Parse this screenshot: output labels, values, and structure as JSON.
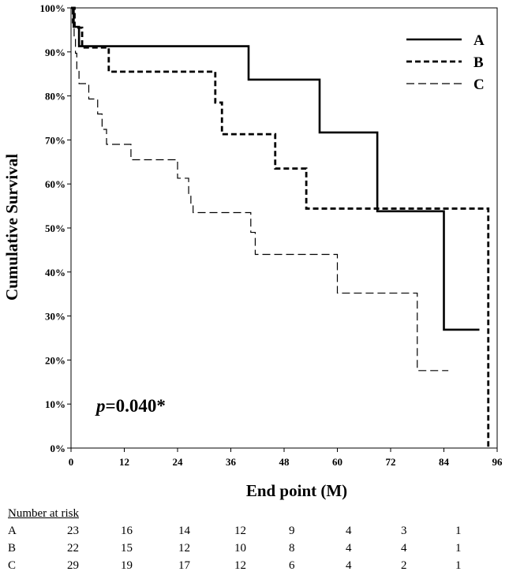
{
  "chart_data": {
    "type": "line",
    "subtype": "kaplan-meier-step",
    "xlabel": "End point (M)",
    "ylabel": "Cumulative Survival",
    "xlim": [
      0,
      96
    ],
    "ylim": [
      0,
      100
    ],
    "xticks": [
      0,
      12,
      24,
      36,
      48,
      60,
      72,
      84,
      96
    ],
    "yticks": [
      0,
      10,
      20,
      30,
      40,
      50,
      60,
      70,
      80,
      90,
      100
    ],
    "ytick_labels": [
      "0%",
      "10%",
      "20%",
      "30%",
      "40%",
      "50%",
      "60%",
      "70%",
      "80%",
      "90%",
      "100%"
    ],
    "grid": false,
    "legend_position": "top-right",
    "annotation": {
      "italic": "p",
      "rest": "=0.040*"
    },
    "series": [
      {
        "name": "A",
        "style": "solid-thick",
        "points": [
          [
            0,
            100
          ],
          [
            0.6,
            95.7
          ],
          [
            1.8,
            91.3
          ],
          [
            40,
            83.7
          ],
          [
            56,
            71.7
          ],
          [
            69,
            53.8
          ],
          [
            84,
            26.9
          ],
          [
            92,
            26.9
          ]
        ]
      },
      {
        "name": "B",
        "style": "dashed-thick",
        "points": [
          [
            0,
            100
          ],
          [
            0.8,
            95.5
          ],
          [
            2.5,
            91
          ],
          [
            8.5,
            85.5
          ],
          [
            32.5,
            78.5
          ],
          [
            34,
            71.3
          ],
          [
            46,
            63.5
          ],
          [
            53,
            54.4
          ],
          [
            94,
            0
          ]
        ]
      },
      {
        "name": "C",
        "style": "dashed-thin",
        "points": [
          [
            0,
            100
          ],
          [
            0.3,
            96.6
          ],
          [
            0.7,
            93.1
          ],
          [
            1,
            89.7
          ],
          [
            1.3,
            86.2
          ],
          [
            1.8,
            82.8
          ],
          [
            4,
            79.3
          ],
          [
            6,
            75.9
          ],
          [
            7,
            72.4
          ],
          [
            8,
            69
          ],
          [
            13.5,
            65.5
          ],
          [
            24,
            61.3
          ],
          [
            26.5,
            57.4
          ],
          [
            27,
            55.5
          ],
          [
            27.5,
            53.5
          ],
          [
            40.5,
            49
          ],
          [
            41.5,
            44
          ],
          [
            60,
            35.2
          ],
          [
            78,
            17.6
          ],
          [
            85,
            17.6
          ]
        ]
      }
    ]
  },
  "risk_table": {
    "title": "Number at risk",
    "rows": [
      {
        "label": "A",
        "values": [
          "23",
          "16",
          "14",
          "12",
          "9",
          "4",
          "3",
          "1"
        ]
      },
      {
        "label": "B",
        "values": [
          "22",
          "15",
          "12",
          "10",
          "8",
          "4",
          "4",
          "1"
        ]
      },
      {
        "label": "C",
        "values": [
          "29",
          "19",
          "17",
          "12",
          "6",
          "4",
          "2",
          "1"
        ]
      }
    ]
  }
}
